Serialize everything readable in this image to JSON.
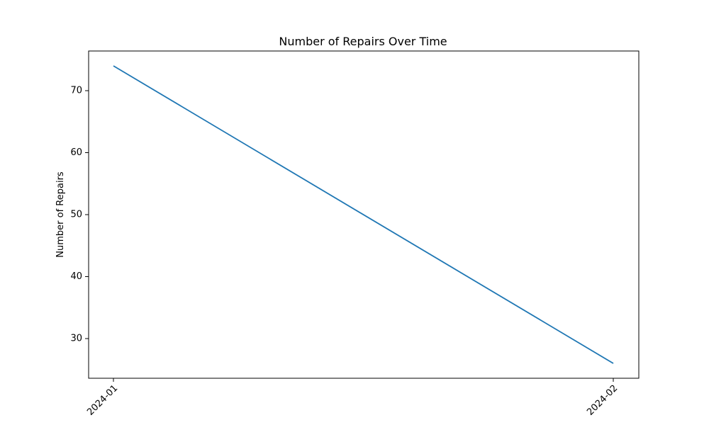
{
  "chart_data": {
    "type": "line",
    "title": "Number of Repairs Over Time",
    "xlabel": "",
    "ylabel": "Number of Repairs",
    "categories": [
      "2024-01",
      "2024-02"
    ],
    "series": [
      {
        "values": [
          74,
          26
        ],
        "color": "#1f77b4"
      }
    ],
    "ylim": [
      23.6,
      76.4
    ],
    "yticks": [
      30,
      40,
      50,
      60,
      70
    ],
    "x_tick_rotation_deg": 45,
    "grid": false,
    "legend": "none"
  }
}
